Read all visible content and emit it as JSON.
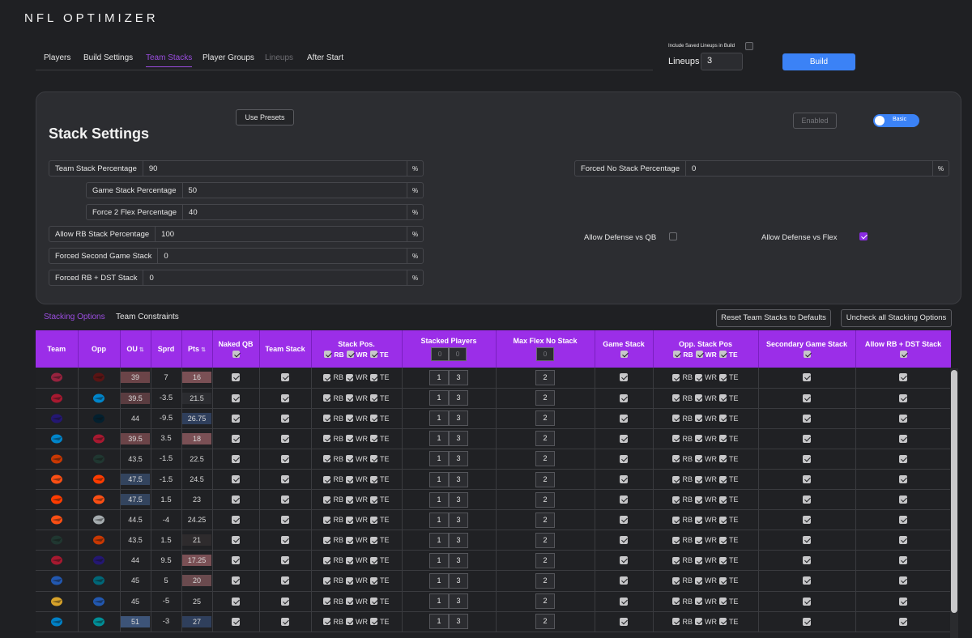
{
  "app_title": "NFL OPTIMIZER",
  "nav": {
    "tabs": [
      {
        "label": "Players",
        "state": "normal"
      },
      {
        "label": "Build Settings",
        "state": "normal"
      },
      {
        "label": "Team Stacks",
        "state": "active"
      },
      {
        "label": "Player Groups",
        "state": "normal"
      },
      {
        "label": "Lineups",
        "state": "disabled"
      },
      {
        "label": "After Start",
        "state": "normal"
      }
    ]
  },
  "build": {
    "include_saved_label": "Include Saved Lineups in Build",
    "include_saved_checked": false,
    "lineups_label": "Lineups",
    "lineups_value": "3",
    "build_label": "Build"
  },
  "stack_settings": {
    "title": "Stack Settings",
    "use_presets": "Use Presets",
    "enabled_label": "Enabled",
    "mode_label": "Basic",
    "fields": [
      {
        "label": "Team Stack Percentage",
        "value": "90",
        "unit": "%"
      },
      {
        "label": "Game Stack Percentage",
        "value": "50",
        "unit": "%"
      },
      {
        "label": "Force 2 Flex Percentage",
        "value": "40",
        "unit": "%"
      },
      {
        "label": "Allow RB Stack Percentage",
        "value": "100",
        "unit": "%"
      },
      {
        "label": "Forced Second Game Stack",
        "value": "0",
        "unit": "%"
      },
      {
        "label": "Forced RB + DST Stack",
        "value": "0",
        "unit": "%"
      }
    ],
    "forced_no_stack": {
      "label": "Forced No Stack Percentage",
      "value": "0",
      "unit": "%"
    },
    "allow_def_vs_qb": {
      "label": "Allow Defense vs QB",
      "checked": false
    },
    "allow_def_vs_flex": {
      "label": "Allow Defense vs Flex",
      "checked": true
    }
  },
  "subtabs": [
    {
      "label": "Stacking Options",
      "active": true
    },
    {
      "label": "Team Constraints",
      "active": false
    }
  ],
  "buttons": {
    "reset": "Reset Team Stacks to Defaults",
    "uncheck": "Uncheck all Stacking Options"
  },
  "table": {
    "headers": {
      "team": "Team",
      "opp": "Opp",
      "ou": "OU",
      "sprd": "Sprd",
      "pts": "Pts",
      "naked_qb": "Naked QB",
      "team_stack": "Team Stack",
      "stack_pos": "Stack Pos.",
      "stacked_players": "Stacked Players",
      "max_flex": "Max Flex No Stack",
      "game_stack": "Game Stack",
      "opp_stack_pos": "Opp. Stack Pos",
      "secondary_game_stack": "Secondary Game Stack",
      "allow_rb_dst": "Allow RB + DST Stack",
      "rb": "RB",
      "wr": "WR",
      "te": "TE",
      "stacked_min": "0",
      "stacked_max": "0",
      "max_flex_default": "0"
    },
    "rows": [
      {
        "team": "ARI",
        "team_color": "#97233f",
        "opp": "WAS",
        "opp_color": "#5a1414",
        "ou": "39",
        "ou_hl": "#6b4448",
        "sprd": "7",
        "pts": "16",
        "pts_hl": "#7a5055",
        "min": "1",
        "max": "3",
        "flex": "2"
      },
      {
        "team": "ATL",
        "team_color": "#a71930",
        "opp": "CAR",
        "opp_color": "#0085ca",
        "ou": "39.5",
        "ou_hl": "#5a3c40",
        "sprd": "-3.5",
        "pts": "21.5",
        "pts_hl": "#2b2c30",
        "min": "1",
        "max": "3",
        "flex": "2"
      },
      {
        "team": "BAL",
        "team_color": "#241773",
        "opp": "HOU",
        "opp_color": "#03202f",
        "ou": "44",
        "ou_hl": "",
        "sprd": "-9.5",
        "pts": "26.75",
        "pts_hl": "#2f3f5c",
        "min": "1",
        "max": "3",
        "flex": "2"
      },
      {
        "team": "CAR",
        "team_color": "#0085ca",
        "opp": "ATL",
        "opp_color": "#a71930",
        "ou": "39.5",
        "ou_hl": "#6b4448",
        "sprd": "3.5",
        "pts": "18",
        "pts_hl": "#7a5055",
        "min": "1",
        "max": "3",
        "flex": "2"
      },
      {
        "team": "CHI",
        "team_color": "#c83803",
        "opp": "GB",
        "opp_color": "#203731",
        "ou": "43.5",
        "ou_hl": "",
        "sprd": "-1.5",
        "pts": "22.5",
        "pts_hl": "",
        "min": "1",
        "max": "3",
        "flex": "2"
      },
      {
        "team": "CIN",
        "team_color": "#fb4f14",
        "opp": "CLE",
        "opp_color": "#ff3c00",
        "ou": "47.5",
        "ou_hl": "#33445e",
        "sprd": "-1.5",
        "pts": "24.5",
        "pts_hl": "",
        "min": "1",
        "max": "3",
        "flex": "2"
      },
      {
        "team": "CLE",
        "team_color": "#ff3c00",
        "opp": "CIN",
        "opp_color": "#fb4f14",
        "ou": "47.5",
        "ou_hl": "#33445e",
        "sprd": "1.5",
        "pts": "23",
        "pts_hl": "",
        "min": "1",
        "max": "3",
        "flex": "2"
      },
      {
        "team": "DEN",
        "team_color": "#fb4f14",
        "opp": "LV",
        "opp_color": "#a5acaf",
        "ou": "44.5",
        "ou_hl": "",
        "sprd": "-4",
        "pts": "24.25",
        "pts_hl": "",
        "min": "1",
        "max": "3",
        "flex": "2"
      },
      {
        "team": "GB",
        "team_color": "#203731",
        "opp": "CHI",
        "opp_color": "#c83803",
        "ou": "43.5",
        "ou_hl": "",
        "sprd": "1.5",
        "pts": "21",
        "pts_hl": "#2e2b2d",
        "min": "1",
        "max": "3",
        "flex": "2"
      },
      {
        "team": "HOU",
        "team_color": "#a71930",
        "opp": "BAL",
        "opp_color": "#241773",
        "ou": "44",
        "ou_hl": "",
        "sprd": "9.5",
        "pts": "17.25",
        "pts_hl": "#7a5055",
        "min": "1",
        "max": "3",
        "flex": "2"
      },
      {
        "team": "IND",
        "team_color": "#2258b0",
        "opp": "JAX",
        "opp_color": "#006778",
        "ou": "45",
        "ou_hl": "",
        "sprd": "5",
        "pts": "20",
        "pts_hl": "#6a4a4e",
        "min": "1",
        "max": "3",
        "flex": "2"
      },
      {
        "team": "JAX",
        "team_color": "#d7a22a",
        "opp": "IND",
        "opp_color": "#2258b0",
        "ou": "45",
        "ou_hl": "",
        "sprd": "-5",
        "pts": "25",
        "pts_hl": "",
        "min": "1",
        "max": "3",
        "flex": "2"
      },
      {
        "team": "LAC",
        "team_color": "#0080c6",
        "opp": "MIA",
        "opp_color": "#008e97",
        "ou": "51",
        "ou_hl": "#3d5478",
        "sprd": "-3",
        "pts": "27",
        "pts_hl": "#2f3f5c",
        "min": "1",
        "max": "3",
        "flex": "2"
      },
      {
        "team": "",
        "team_color": "#444",
        "opp": "",
        "opp_color": "#444",
        "ou": "",
        "ou_hl": "",
        "sprd": "",
        "pts": "",
        "pts_hl": "",
        "min": "",
        "max": "",
        "flex": ""
      }
    ]
  }
}
